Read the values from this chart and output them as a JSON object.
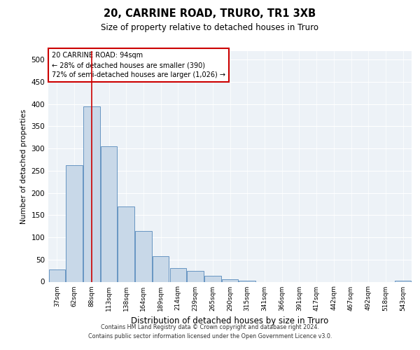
{
  "title1": "20, CARRINE ROAD, TRURO, TR1 3XB",
  "title2": "Size of property relative to detached houses in Truro",
  "xlabel": "Distribution of detached houses by size in Truro",
  "ylabel": "Number of detached properties",
  "categories": [
    "37sqm",
    "62sqm",
    "88sqm",
    "113sqm",
    "138sqm",
    "164sqm",
    "189sqm",
    "214sqm",
    "239sqm",
    "265sqm",
    "290sqm",
    "315sqm",
    "341sqm",
    "366sqm",
    "391sqm",
    "417sqm",
    "442sqm",
    "467sqm",
    "492sqm",
    "518sqm",
    "543sqm"
  ],
  "values": [
    28,
    263,
    395,
    305,
    170,
    115,
    57,
    30,
    25,
    14,
    5,
    2,
    0,
    0,
    0,
    0,
    0,
    0,
    0,
    0,
    2
  ],
  "bar_color": "#c8d8e8",
  "bar_edge_color": "#5588bb",
  "vline_x_index": 2,
  "vline_color": "#cc0000",
  "annotation_text": "20 CARRINE ROAD: 94sqm\n← 28% of detached houses are smaller (390)\n72% of semi-detached houses are larger (1,026) →",
  "annotation_box_color": "#ffffff",
  "annotation_box_edge": "#cc0000",
  "ylim": [
    0,
    520
  ],
  "yticks": [
    0,
    50,
    100,
    150,
    200,
    250,
    300,
    350,
    400,
    450,
    500
  ],
  "footer1": "Contains HM Land Registry data © Crown copyright and database right 2024.",
  "footer2": "Contains public sector information licensed under the Open Government Licence v3.0.",
  "plot_bg_color": "#edf2f7"
}
